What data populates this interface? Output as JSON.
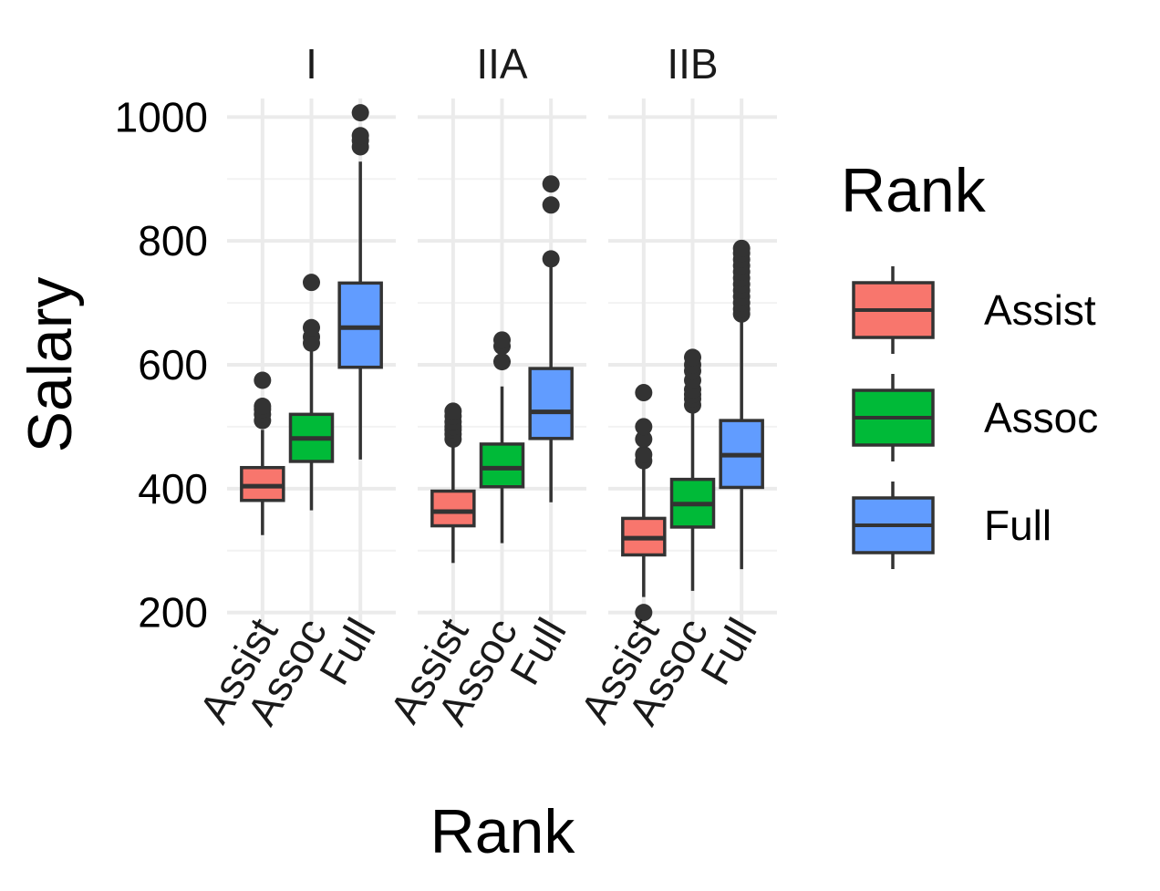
{
  "chart_data": {
    "type": "boxplot",
    "ylabel": "Salary",
    "xlabel": "Rank",
    "legend_title": "Rank",
    "legend_position": "right",
    "grid": true,
    "ylim": [
      170,
      1030
    ],
    "y_ticks": [
      200,
      400,
      600,
      800,
      1000
    ],
    "categories": [
      "Assist",
      "Assoc",
      "Full"
    ],
    "colors": {
      "Assist": "#F8766D",
      "Assoc": "#00BA38",
      "Full": "#619CFF"
    },
    "legend": [
      {
        "label": "Assist",
        "color": "#F8766D"
      },
      {
        "label": "Assoc",
        "color": "#00BA38"
      },
      {
        "label": "Full",
        "color": "#619CFF"
      }
    ],
    "facets": [
      {
        "name": "I",
        "boxes": [
          {
            "category": "Assist",
            "min": 325,
            "q1": 381,
            "median": 404,
            "q3": 434,
            "max": 495,
            "outliers": [
              510,
              520,
              528,
              533,
              575
            ]
          },
          {
            "category": "Assoc",
            "min": 365,
            "q1": 444,
            "median": 481,
            "q3": 520,
            "max": 625,
            "outliers": [
              635,
              645,
              660,
              733
            ]
          },
          {
            "category": "Full",
            "min": 447,
            "q1": 596,
            "median": 660,
            "q3": 732,
            "max": 928,
            "outliers": [
              952,
              962,
              970,
              1007
            ]
          }
        ]
      },
      {
        "name": "IIA",
        "boxes": [
          {
            "category": "Assist",
            "min": 280,
            "q1": 340,
            "median": 363,
            "q3": 396,
            "max": 472,
            "outliers": [
              480,
              488,
              495,
              500,
              508,
              517,
              525
            ]
          },
          {
            "category": "Assoc",
            "min": 312,
            "q1": 403,
            "median": 433,
            "q3": 472,
            "max": 565,
            "outliers": [
              605,
              630,
              640
            ]
          },
          {
            "category": "Full",
            "min": 378,
            "q1": 481,
            "median": 524,
            "q3": 594,
            "max": 760,
            "outliers": [
              771,
              858,
              892
            ]
          }
        ]
      },
      {
        "name": "IIB",
        "boxes": [
          {
            "category": "Assist",
            "min": 225,
            "q1": 293,
            "median": 320,
            "q3": 352,
            "max": 435,
            "outliers": [
              200,
              445,
              455,
              480,
              500,
              555
            ]
          },
          {
            "category": "Assoc",
            "min": 235,
            "q1": 338,
            "median": 375,
            "q3": 415,
            "max": 525,
            "outliers": [
              535,
              545,
              552,
              560,
              575,
              590,
              600,
              612
            ]
          },
          {
            "category": "Full",
            "min": 270,
            "q1": 402,
            "median": 454,
            "q3": 510,
            "max": 675,
            "outliers": [
              682,
              690,
              700,
              710,
              720,
              730,
              740,
              750,
              760,
              770,
              780,
              788
            ]
          }
        ]
      }
    ]
  }
}
